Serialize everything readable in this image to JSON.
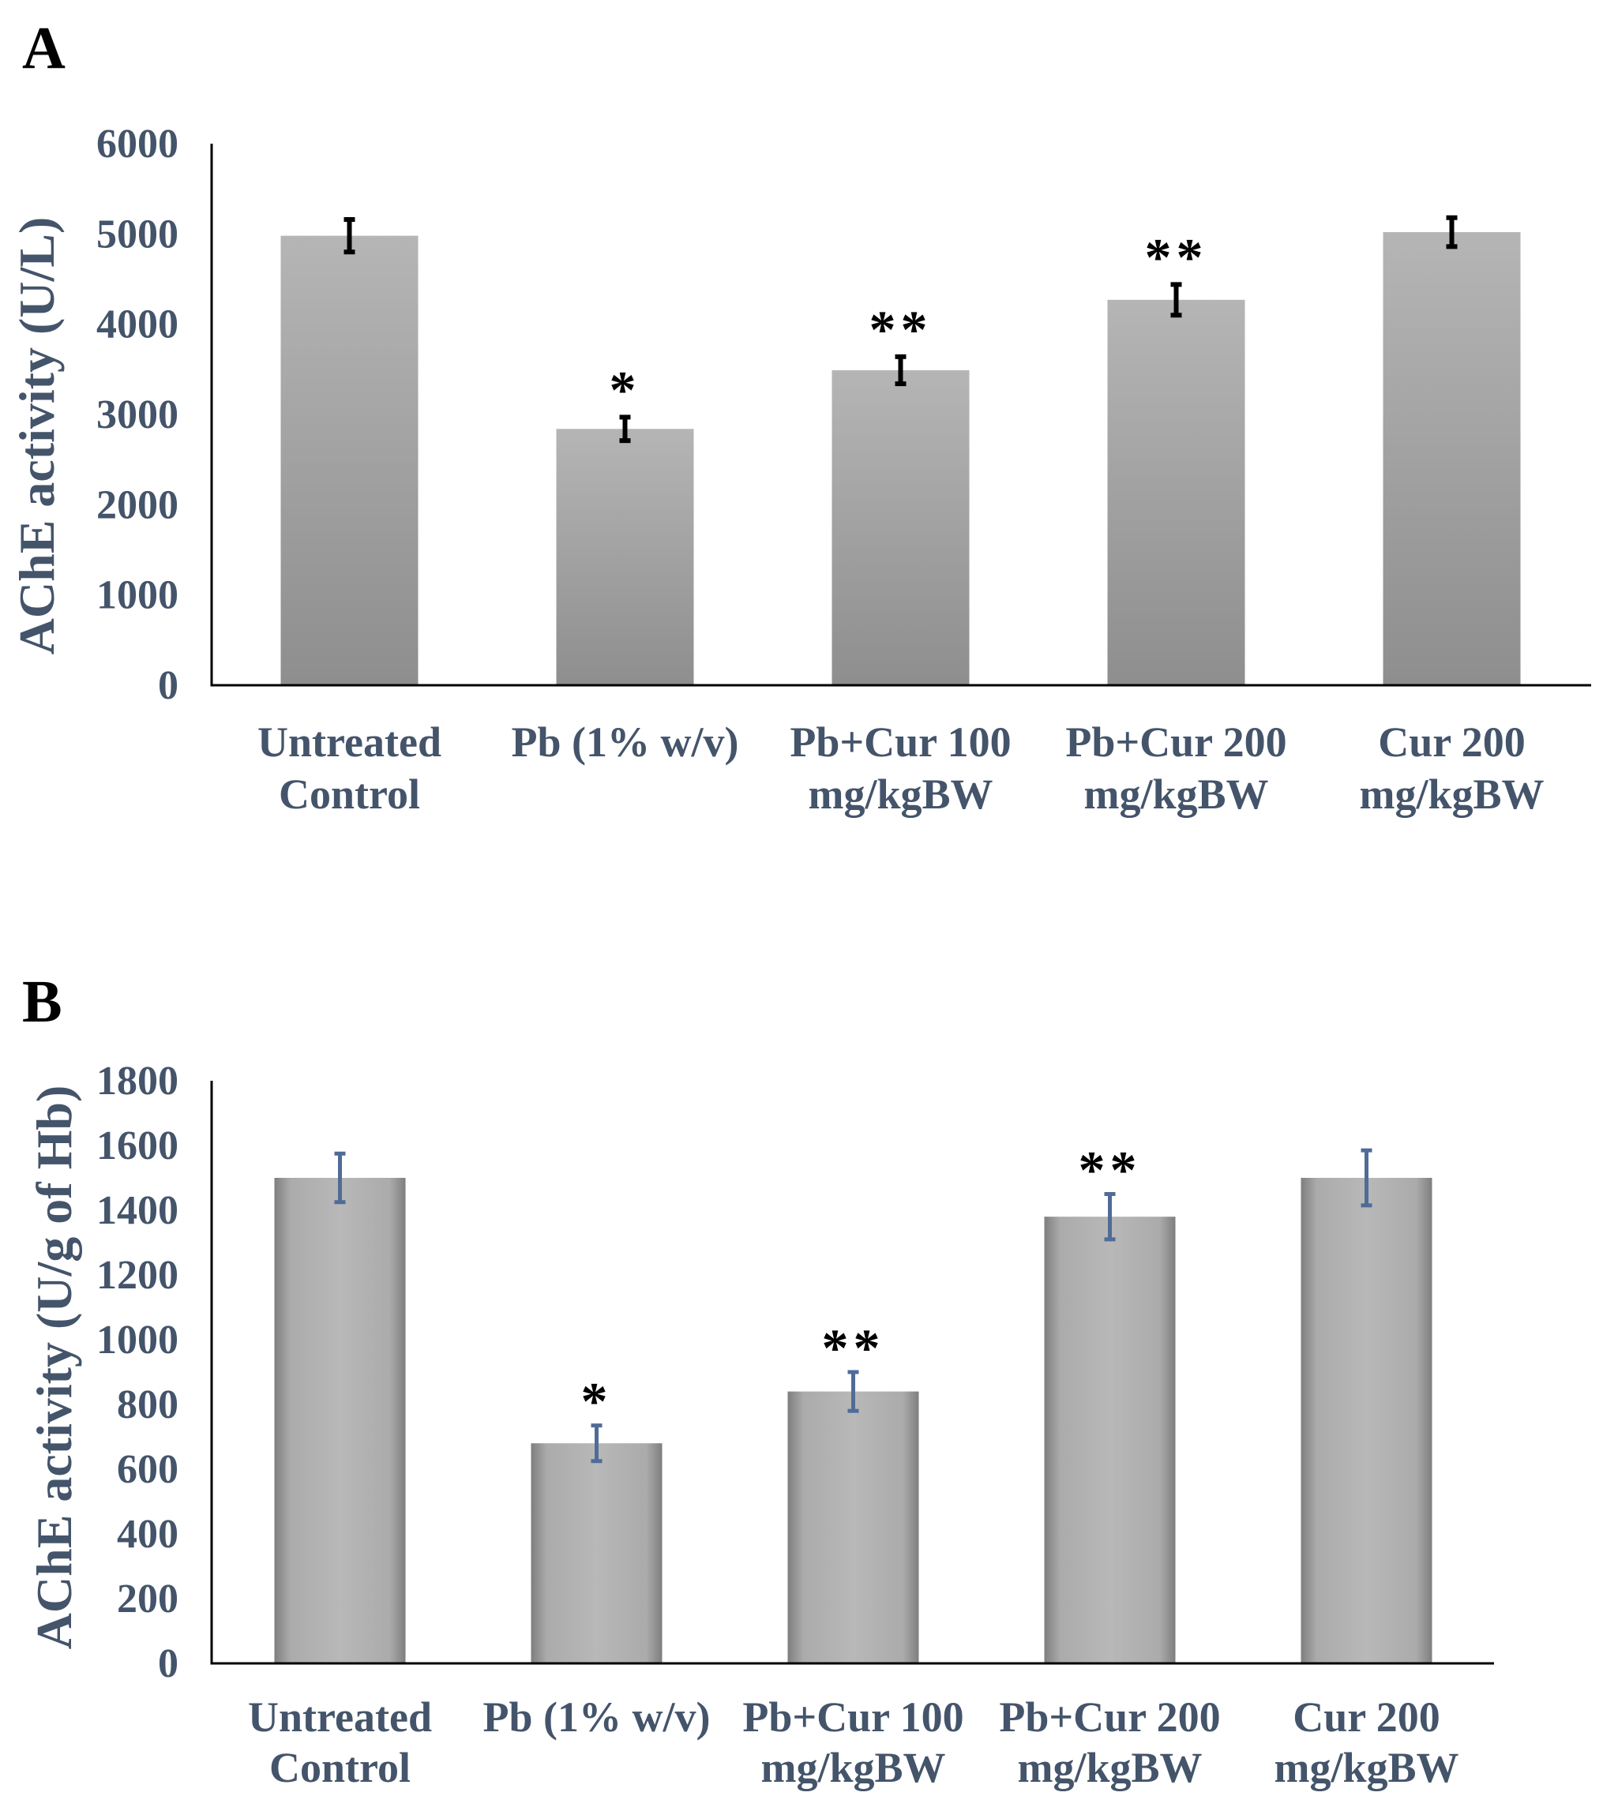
{
  "colors": {
    "axis_text": "#44546A",
    "axis_line": "#000000",
    "bar_gradient_top": "#B3B3B3",
    "bar_gradient_bottom": "#8C8C8C",
    "error_a": "#000000",
    "error_b": "#4F6C96"
  },
  "chart_data": [
    {
      "type": "bar",
      "panel": "A",
      "categories": [
        [
          "Untreated",
          "Control"
        ],
        [
          "Pb (1% w/v)"
        ],
        [
          "Pb+Cur 100",
          "mg/kgBW"
        ],
        [
          "Pb+Cur 200",
          "mg/kgBW"
        ],
        [
          "Cur 200",
          "mg/kgBW"
        ]
      ],
      "values": [
        4980,
        2840,
        3490,
        4270,
        5020
      ],
      "errors": [
        180,
        130,
        150,
        170,
        160
      ],
      "significance": [
        "",
        "*",
        "**",
        "**",
        ""
      ],
      "ylabel": "AChE activity (U/L)",
      "xlabel": "",
      "ylim": [
        0,
        6000
      ],
      "yticks": [
        0,
        1000,
        2000,
        3000,
        4000,
        5000,
        6000
      ],
      "grid": false
    },
    {
      "type": "bar",
      "panel": "B",
      "categories": [
        [
          "Untreated",
          "Control"
        ],
        [
          "Pb (1% w/v)"
        ],
        [
          "Pb+Cur 100",
          "mg/kgBW"
        ],
        [
          "Pb+Cur 200",
          "mg/kgBW"
        ],
        [
          "Cur 200",
          "mg/kgBW"
        ]
      ],
      "values": [
        1500,
        680,
        840,
        1380,
        1500
      ],
      "errors": [
        75,
        55,
        60,
        70,
        85
      ],
      "significance": [
        "",
        "*",
        "**",
        "**",
        ""
      ],
      "ylabel": "AChE activity (U/g of Hb)",
      "xlabel": "",
      "ylim": [
        0,
        1800
      ],
      "yticks": [
        0,
        200,
        400,
        600,
        800,
        1000,
        1200,
        1400,
        1600,
        1800
      ],
      "grid": false
    }
  ]
}
